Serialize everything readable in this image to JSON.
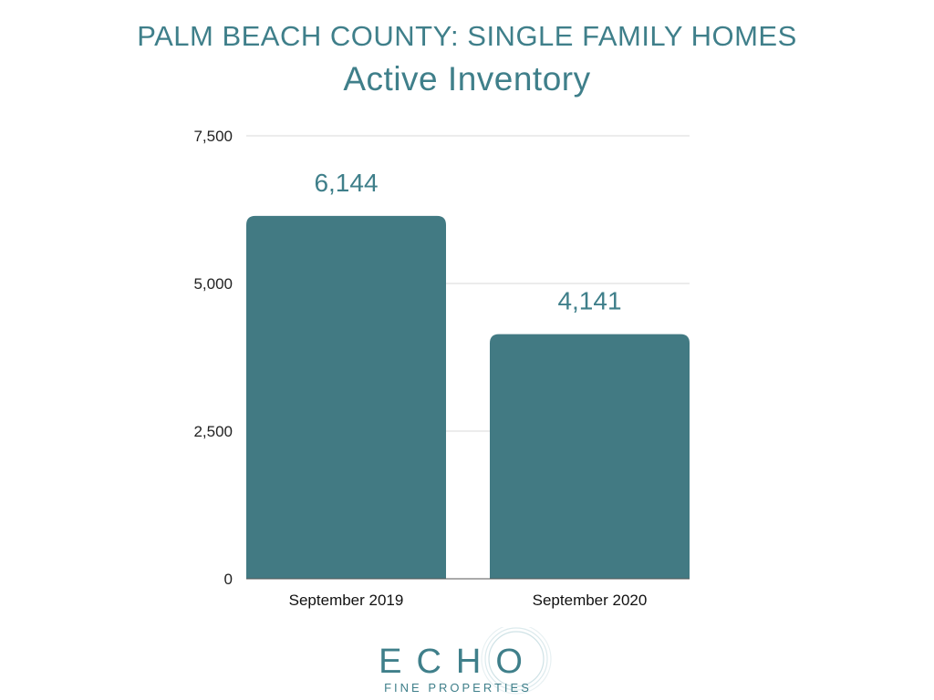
{
  "chart_data": {
    "type": "bar",
    "title": "PALM BEACH COUNTY: SINGLE FAMILY HOMES",
    "subtitle": "Active Inventory",
    "categories": [
      "September 2019",
      "September 2020"
    ],
    "values": [
      6144,
      4141
    ],
    "value_labels": [
      "6,144",
      "4,141"
    ],
    "ylim": [
      0,
      7500
    ],
    "y_ticks": [
      0,
      2500,
      5000,
      7500
    ],
    "y_tick_labels": [
      "0",
      "2,500",
      "5,000",
      "7,500"
    ],
    "grid": true,
    "bar_color": "#427a83",
    "label_color": "#3f7f8a"
  },
  "logo": {
    "wordmark": "ECHO",
    "tagline": "FINE PROPERTIES",
    "color": "#3f7f8a"
  }
}
